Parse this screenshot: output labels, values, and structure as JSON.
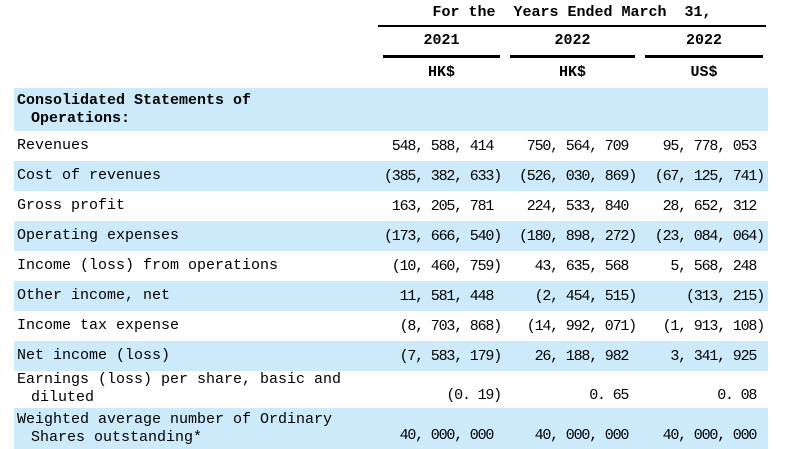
{
  "statement": {
    "header": {
      "title": "For the  Years Ended March  31,",
      "columns": [
        {
          "year": "2021",
          "currency": "HK$"
        },
        {
          "year": "2022",
          "currency": "HK$"
        },
        {
          "year": "2022",
          "currency": "US$"
        }
      ]
    },
    "rows": [
      {
        "label": "Consolidated Statements of",
        "label2": "Operations:",
        "v1": "",
        "v2": "",
        "v3": ""
      },
      {
        "label": "Revenues",
        "v1": "548, 588, 414",
        "v2": "750, 564, 709",
        "v3": "95, 778, 053"
      },
      {
        "label": "Cost of revenues",
        "v1": "(385, 382, 633)",
        "v2": "(526, 030, 869)",
        "v3": "(67, 125, 741)"
      },
      {
        "label": "Gross profit",
        "v1": "163, 205, 781",
        "v2": "224, 533, 840",
        "v3": "28, 652, 312"
      },
      {
        "label": "Operating expenses",
        "v1": "(173, 666, 540)",
        "v2": "(180, 898, 272)",
        "v3": "(23, 084, 064)"
      },
      {
        "label": "Income (loss) from operations",
        "v1": "(10, 460, 759)",
        "v2": "43, 635, 568",
        "v3": "5, 568, 248"
      },
      {
        "label": "Other income, net",
        "v1": "11, 581, 448",
        "v2": "(2, 454, 515)",
        "v3": "(313, 215)"
      },
      {
        "label": "Income tax expense",
        "v1": "(8, 703, 868)",
        "v2": "(14, 992, 071)",
        "v3": "(1, 913, 108)"
      },
      {
        "label": "Net income (loss)",
        "v1": "(7, 583, 179)",
        "v2": "26, 188, 982",
        "v3": "3, 341, 925"
      },
      {
        "label": "Earnings (loss) per share, basic and",
        "label2": "diluted",
        "v1": "(0. 19)",
        "v2": "0. 65",
        "v3": "0. 08"
      },
      {
        "label": "Weighted average number of Ordinary",
        "label2": "Shares outstanding*",
        "v1": "40, 000, 000",
        "v2": "40, 000, 000",
        "v3": "40, 000, 000"
      }
    ],
    "colors": {
      "row_shade": "#cdeafb",
      "rule": "#000000",
      "text": "#000000"
    }
  }
}
